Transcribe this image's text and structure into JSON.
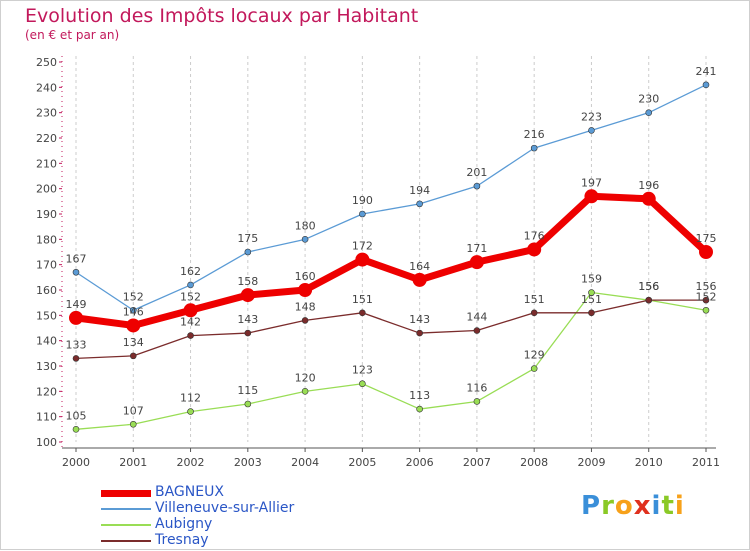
{
  "header": {
    "title": "Evolution des Impôts locaux par Habitant",
    "subtitle": "(en € et par an)"
  },
  "logo": {
    "letters": [
      {
        "ch": "P",
        "color": "#3a8fd9"
      },
      {
        "ch": "r",
        "color": "#8ac926"
      },
      {
        "ch": "o",
        "color": "#f7a11a"
      },
      {
        "ch": "x",
        "color": "#e0301e"
      },
      {
        "ch": "i",
        "color": "#3a8fd9"
      },
      {
        "ch": "t",
        "color": "#8ac926"
      },
      {
        "ch": "i",
        "color": "#f7a11a"
      }
    ]
  },
  "chart_data": {
    "type": "line",
    "title": "Evolution des Impôts locaux par Habitant",
    "subtitle": "(en € et par an)",
    "xlabel": "",
    "ylabel": "",
    "x": [
      "2000",
      "2001",
      "2002",
      "2003",
      "2004",
      "2005",
      "2006",
      "2007",
      "2008",
      "2009",
      "2010",
      "2011"
    ],
    "ylim": [
      100,
      250
    ],
    "yticks": [
      100,
      110,
      120,
      130,
      140,
      150,
      160,
      170,
      180,
      190,
      200,
      210,
      220,
      230,
      240,
      250
    ],
    "grid": "vertical dashed",
    "legend_position": "bottom-left",
    "series": [
      {
        "name": "BAGNEUX",
        "color": "#ee0000",
        "values": [
          149,
          146,
          152,
          158,
          160,
          172,
          164,
          171,
          176,
          197,
          196,
          175
        ],
        "labels": [
          "149",
          "146",
          "152",
          "158",
          "160",
          "172",
          "164",
          "171",
          "176",
          "197",
          "196",
          "175"
        ]
      },
      {
        "name": "Villeneuve-sur-Allier",
        "color": "#5b9bd5",
        "values": [
          167,
          152,
          162,
          175,
          180,
          190,
          194,
          201,
          216,
          223,
          230,
          241
        ],
        "labels": [
          "167",
          "152",
          "162",
          "175",
          "180",
          "190",
          "194",
          "201",
          "216",
          "223",
          "230",
          "241"
        ]
      },
      {
        "name": "Aubigny",
        "color": "#99dd55",
        "values": [
          105,
          107,
          112,
          115,
          120,
          123,
          113,
          116,
          129,
          159,
          156,
          152
        ],
        "labels": [
          "105",
          "107",
          "112",
          "115",
          "120",
          "123",
          "113",
          "116",
          "129",
          "159",
          "156",
          "152"
        ]
      },
      {
        "name": "Tresnay",
        "color": "#7b2c2c",
        "values": [
          133,
          134,
          142,
          143,
          148,
          151,
          143,
          144,
          151,
          151,
          156,
          156
        ],
        "labels": [
          "133",
          "134",
          "142",
          "143",
          "148",
          "151",
          "143",
          "144",
          "151",
          "151",
          "156",
          "156"
        ]
      }
    ]
  }
}
